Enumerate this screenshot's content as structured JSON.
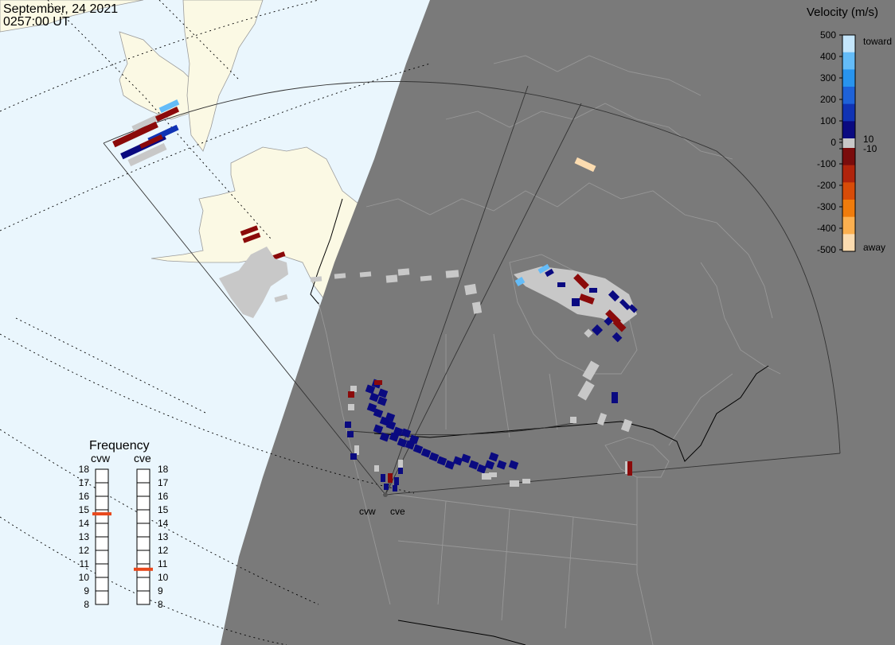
{
  "header": {
    "date": "September, 24 2021",
    "time": "0257:00 UT"
  },
  "colorbar": {
    "title": "Velocity (m/s)",
    "ticks": [
      "500",
      "400",
      "300",
      "200",
      "100",
      "10",
      "0",
      "-10",
      "-100",
      "-200",
      "-300",
      "-400",
      "-500"
    ],
    "label_toward": "toward",
    "label_away": "away",
    "colors_toward": [
      "#0a0a80",
      "#1033b4",
      "#1e62d8",
      "#2894ee",
      "#64bcf8",
      "#c4e6fc"
    ],
    "colors_away": [
      "#7a0c0c",
      "#b0240c",
      "#d84c08",
      "#f07c0c",
      "#fcb050",
      "#fcdcb0"
    ],
    "zero_color": "#c8c8c8"
  },
  "frequency": {
    "title": "Frequency",
    "radars": [
      {
        "name": "cvw",
        "value_mhz": 14.7
      },
      {
        "name": "cve",
        "value_mhz": 10.6
      }
    ],
    "ticks": [
      "18",
      "17",
      "16",
      "15",
      "14",
      "13",
      "12",
      "11",
      "10",
      "9",
      "8"
    ],
    "marker_color": "#e8481c"
  },
  "sites": {
    "west": "cvw",
    "east": "cve"
  },
  "map": {
    "night_color": "#7a7a7a",
    "ocean_color": "#eaf6fd",
    "land_color": "#fbf9e4",
    "ground_scatter_color": "#c8c8c8"
  }
}
